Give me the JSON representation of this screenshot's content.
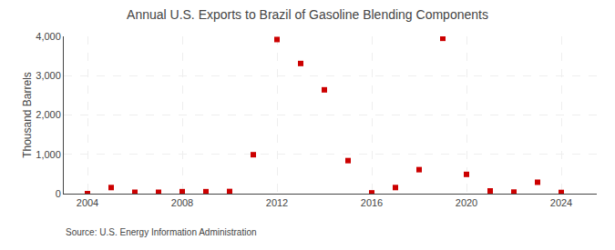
{
  "chart_data": {
    "type": "scatter",
    "title": "Annual U.S. Exports to Brazil of Gasoline Blending Components",
    "y_label": "Thousand Barrels",
    "annotations": [
      "Source: U.S. Energy Information Administration"
    ],
    "x": [
      2004,
      2005,
      2006,
      2007,
      2008,
      2009,
      2010,
      2011,
      2012,
      2013,
      2014,
      2015,
      2016,
      2017,
      2018,
      2019,
      2020,
      2021,
      2022,
      2023,
      2024
    ],
    "values": [
      0,
      155,
      35,
      35,
      50,
      50,
      55,
      990,
      3920,
      3310,
      2640,
      840,
      20,
      155,
      610,
      3950,
      490,
      70,
      40,
      290,
      30
    ],
    "color": "#cc0000",
    "marker": "square",
    "xlim": [
      2003.0,
      2025.5
    ],
    "xticks": [
      2004,
      2008,
      2012,
      2016,
      2020,
      2024
    ],
    "ylim": [
      0,
      4000
    ],
    "yticks": [
      0,
      {
        "value": 1000,
        "label": "1,000"
      },
      {
        "value": 2000,
        "label": "2,000"
      },
      {
        "value": 3000,
        "label": "3,000"
      },
      {
        "value": 4000,
        "label": "4,000"
      }
    ],
    "grid": true
  }
}
